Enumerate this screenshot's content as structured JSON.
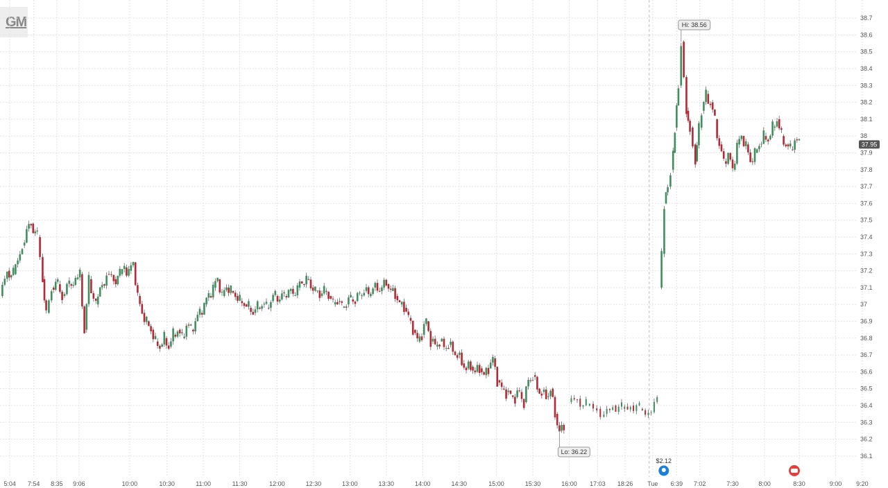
{
  "header": {
    "ticker": "GM"
  },
  "chart_data": {
    "type": "candlestick",
    "title": "",
    "xlabel": "",
    "ylabel": "",
    "ylim": [
      36.05,
      38.75
    ],
    "y_ticks": [
      36.1,
      36.2,
      36.3,
      36.4,
      36.5,
      36.6,
      36.7,
      36.8,
      36.9,
      37,
      37.1,
      37.2,
      37.3,
      37.4,
      37.5,
      37.6,
      37.7,
      37.8,
      37.9,
      38,
      38.1,
      38.2,
      38.3,
      38.4,
      38.5,
      38.6,
      38.7
    ],
    "x_ticks": [
      {
        "label": "5:04",
        "pos": 0.011
      },
      {
        "label": "7:54",
        "pos": 0.038
      },
      {
        "label": "8:35",
        "pos": 0.064
      },
      {
        "label": "9:06",
        "pos": 0.089
      },
      {
        "label": "10:00",
        "pos": 0.146
      },
      {
        "label": "10:30",
        "pos": 0.188
      },
      {
        "label": "11:00",
        "pos": 0.229
      },
      {
        "label": "11:30",
        "pos": 0.27
      },
      {
        "label": "12:00",
        "pos": 0.312
      },
      {
        "label": "12:30",
        "pos": 0.353
      },
      {
        "label": "13:00",
        "pos": 0.394
      },
      {
        "label": "13:30",
        "pos": 0.435
      },
      {
        "label": "14:00",
        "pos": 0.476
      },
      {
        "label": "14:30",
        "pos": 0.517
      },
      {
        "label": "15:00",
        "pos": 0.559
      },
      {
        "label": "15:30",
        "pos": 0.6
      },
      {
        "label": "16:00",
        "pos": 0.641
      },
      {
        "label": "17:03",
        "pos": 0.673
      },
      {
        "label": "18:26",
        "pos": 0.704
      },
      {
        "label": "Tue",
        "pos": 0.735
      },
      {
        "label": "6:39",
        "pos": 0.762
      },
      {
        "label": "7:02",
        "pos": 0.788
      },
      {
        "label": "7:30",
        "pos": 0.825
      },
      {
        "label": "8:00",
        "pos": 0.861
      },
      {
        "label": "8:30",
        "pos": 0.9
      },
      {
        "label": "9:00",
        "pos": 0.941
      },
      {
        "label": "9:20",
        "pos": 0.971
      }
    ],
    "day_separator": "Tue",
    "path": [
      [
        0.0,
        37.05
      ],
      [
        0.008,
        37.2
      ],
      [
        0.015,
        37.18
      ],
      [
        0.025,
        37.35
      ],
      [
        0.03,
        37.45
      ],
      [
        0.035,
        37.48
      ],
      [
        0.042,
        37.4
      ],
      [
        0.048,
        37.15
      ],
      [
        0.052,
        36.95
      ],
      [
        0.058,
        37.1
      ],
      [
        0.065,
        37.12
      ],
      [
        0.07,
        37.05
      ],
      [
        0.078,
        37.12
      ],
      [
        0.085,
        37.15
      ],
      [
        0.09,
        37.18
      ],
      [
        0.095,
        36.85
      ],
      [
        0.1,
        37.15
      ],
      [
        0.108,
        37.0
      ],
      [
        0.115,
        37.12
      ],
      [
        0.12,
        37.18
      ],
      [
        0.128,
        37.15
      ],
      [
        0.135,
        37.18
      ],
      [
        0.14,
        37.22
      ],
      [
        0.145,
        37.2
      ],
      [
        0.15,
        37.25
      ],
      [
        0.155,
        37.05
      ],
      [
        0.16,
        36.95
      ],
      [
        0.165,
        36.9
      ],
      [
        0.17,
        36.85
      ],
      [
        0.175,
        36.78
      ],
      [
        0.18,
        36.75
      ],
      [
        0.185,
        36.8
      ],
      [
        0.19,
        36.75
      ],
      [
        0.195,
        36.82
      ],
      [
        0.2,
        36.85
      ],
      [
        0.205,
        36.8
      ],
      [
        0.21,
        36.88
      ],
      [
        0.215,
        36.85
      ],
      [
        0.22,
        36.9
      ],
      [
        0.225,
        36.95
      ],
      [
        0.23,
        37.0
      ],
      [
        0.235,
        37.05
      ],
      [
        0.24,
        37.1
      ],
      [
        0.245,
        37.15
      ],
      [
        0.25,
        37.05
      ],
      [
        0.255,
        37.1
      ],
      [
        0.26,
        37.08
      ],
      [
        0.265,
        37.05
      ],
      [
        0.27,
        37.02
      ],
      [
        0.275,
        37.0
      ],
      [
        0.28,
        36.98
      ],
      [
        0.285,
        36.95
      ],
      [
        0.29,
        36.98
      ],
      [
        0.295,
        37.0
      ],
      [
        0.3,
        36.98
      ],
      [
        0.305,
        37.02
      ],
      [
        0.31,
        37.05
      ],
      [
        0.315,
        37.03
      ],
      [
        0.32,
        37.05
      ],
      [
        0.325,
        37.08
      ],
      [
        0.33,
        37.05
      ],
      [
        0.335,
        37.1
      ],
      [
        0.34,
        37.12
      ],
      [
        0.345,
        37.15
      ],
      [
        0.35,
        37.1
      ],
      [
        0.355,
        37.08
      ],
      [
        0.36,
        37.05
      ],
      [
        0.365,
        37.08
      ],
      [
        0.37,
        37.05
      ],
      [
        0.375,
        37.0
      ],
      [
        0.38,
        37.02
      ],
      [
        0.385,
        36.98
      ],
      [
        0.39,
        37.0
      ],
      [
        0.395,
        37.03
      ],
      [
        0.4,
        37.02
      ],
      [
        0.405,
        37.05
      ],
      [
        0.41,
        37.08
      ],
      [
        0.415,
        37.05
      ],
      [
        0.42,
        37.1
      ],
      [
        0.425,
        37.08
      ],
      [
        0.43,
        37.1
      ],
      [
        0.435,
        37.12
      ],
      [
        0.44,
        37.08
      ],
      [
        0.445,
        37.05
      ],
      [
        0.45,
        37.0
      ],
      [
        0.455,
        36.98
      ],
      [
        0.46,
        36.92
      ],
      [
        0.465,
        36.85
      ],
      [
        0.47,
        36.78
      ],
      [
        0.475,
        36.82
      ],
      [
        0.48,
        36.9
      ],
      [
        0.485,
        36.78
      ],
      [
        0.49,
        36.75
      ],
      [
        0.495,
        36.78
      ],
      [
        0.5,
        36.74
      ],
      [
        0.505,
        36.76
      ],
      [
        0.51,
        36.72
      ],
      [
        0.515,
        36.7
      ],
      [
        0.52,
        36.65
      ],
      [
        0.525,
        36.62
      ],
      [
        0.53,
        36.63
      ],
      [
        0.535,
        36.6
      ],
      [
        0.54,
        36.62
      ],
      [
        0.545,
        36.58
      ],
      [
        0.55,
        36.62
      ],
      [
        0.555,
        36.68
      ],
      [
        0.56,
        36.55
      ],
      [
        0.565,
        36.5
      ],
      [
        0.57,
        36.48
      ],
      [
        0.575,
        36.46
      ],
      [
        0.58,
        36.45
      ],
      [
        0.585,
        36.48
      ],
      [
        0.59,
        36.42
      ],
      [
        0.595,
        36.55
      ],
      [
        0.6,
        36.58
      ],
      [
        0.605,
        36.5
      ],
      [
        0.61,
        36.48
      ],
      [
        0.615,
        36.45
      ],
      [
        0.62,
        36.5
      ],
      [
        0.625,
        36.35
      ],
      [
        0.63,
        36.25
      ],
      [
        0.635,
        36.28
      ]
    ],
    "afterhours": [
      [
        0.64,
        36.42
      ],
      [
        0.65,
        36.44
      ],
      [
        0.66,
        36.4
      ],
      [
        0.672,
        36.38
      ],
      [
        0.68,
        36.35
      ],
      [
        0.69,
        36.4
      ],
      [
        0.7,
        36.38
      ],
      [
        0.71,
        36.4
      ],
      [
        0.72,
        36.38
      ],
      [
        0.73,
        36.36
      ],
      [
        0.74,
        36.42
      ]
    ],
    "tue_path": [
      [
        0.742,
        37.1
      ],
      [
        0.745,
        37.3
      ],
      [
        0.748,
        37.6
      ],
      [
        0.752,
        37.7
      ],
      [
        0.755,
        37.8
      ],
      [
        0.758,
        37.9
      ],
      [
        0.76,
        38.05
      ],
      [
        0.764,
        38.3
      ],
      [
        0.767,
        38.56
      ],
      [
        0.77,
        38.35
      ],
      [
        0.773,
        38.15
      ],
      [
        0.777,
        38.05
      ],
      [
        0.78,
        37.95
      ],
      [
        0.783,
        37.85
      ],
      [
        0.787,
        38.05
      ],
      [
        0.79,
        38.15
      ],
      [
        0.795,
        38.25
      ],
      [
        0.8,
        38.2
      ],
      [
        0.805,
        38.1
      ],
      [
        0.81,
        37.95
      ],
      [
        0.815,
        37.85
      ],
      [
        0.82,
        37.9
      ],
      [
        0.825,
        37.8
      ],
      [
        0.83,
        37.95
      ],
      [
        0.835,
        38.0
      ],
      [
        0.84,
        37.95
      ],
      [
        0.845,
        37.85
      ],
      [
        0.85,
        37.9
      ],
      [
        0.855,
        37.95
      ],
      [
        0.86,
        38.0
      ],
      [
        0.865,
        37.98
      ],
      [
        0.87,
        38.05
      ],
      [
        0.875,
        38.1
      ],
      [
        0.88,
        38.0
      ],
      [
        0.885,
        37.95
      ],
      [
        0.89,
        37.92
      ],
      [
        0.895,
        37.98
      ],
      [
        0.9,
        37.95
      ]
    ],
    "hi_label": "Hi: 38.56",
    "lo_label": "Lo: 36.22",
    "last_price": "37.95",
    "event_label": "$2.12",
    "colors": {
      "up": "#3e8e5e",
      "down": "#b22a33",
      "grid": "#e3e3e3",
      "separator": "#bbbbbb",
      "event_blue": "#1e7fd6",
      "event_red": "#e04040"
    }
  }
}
